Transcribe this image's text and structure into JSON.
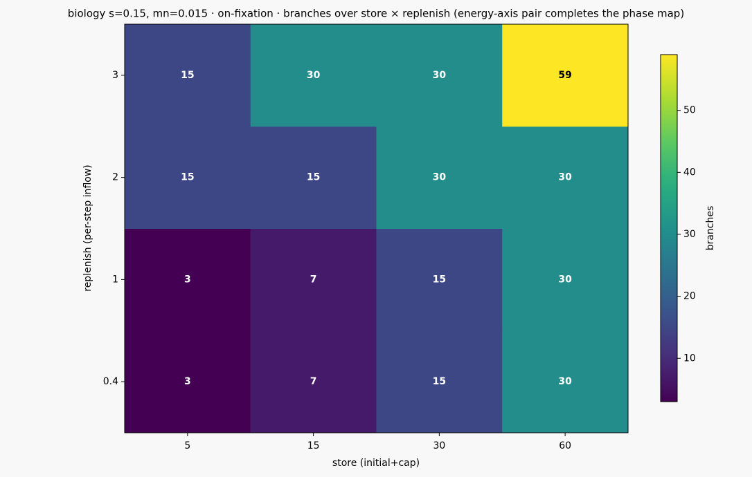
{
  "chart_data": {
    "type": "heatmap",
    "title": "biology s=0.15, mn=0.015 · on-fixation · branches over store × replenish (energy-axis pair completes the phase map)",
    "x_label": "store (initial+cap)",
    "y_label": "replenish (per-step inflow)",
    "x_categories": [
      "5",
      "15",
      "30",
      "60"
    ],
    "y_categories": [
      "0.4",
      "1",
      "2",
      "3"
    ],
    "values": [
      [
        3,
        7,
        15,
        30
      ],
      [
        3,
        7,
        15,
        30
      ],
      [
        15,
        15,
        30,
        30
      ],
      [
        15,
        30,
        30,
        59
      ]
    ],
    "colormap": "viridis",
    "colorbar": {
      "label": "branches",
      "lim": [
        3,
        59
      ],
      "ticks": [
        10,
        20,
        30,
        40,
        50
      ]
    }
  }
}
